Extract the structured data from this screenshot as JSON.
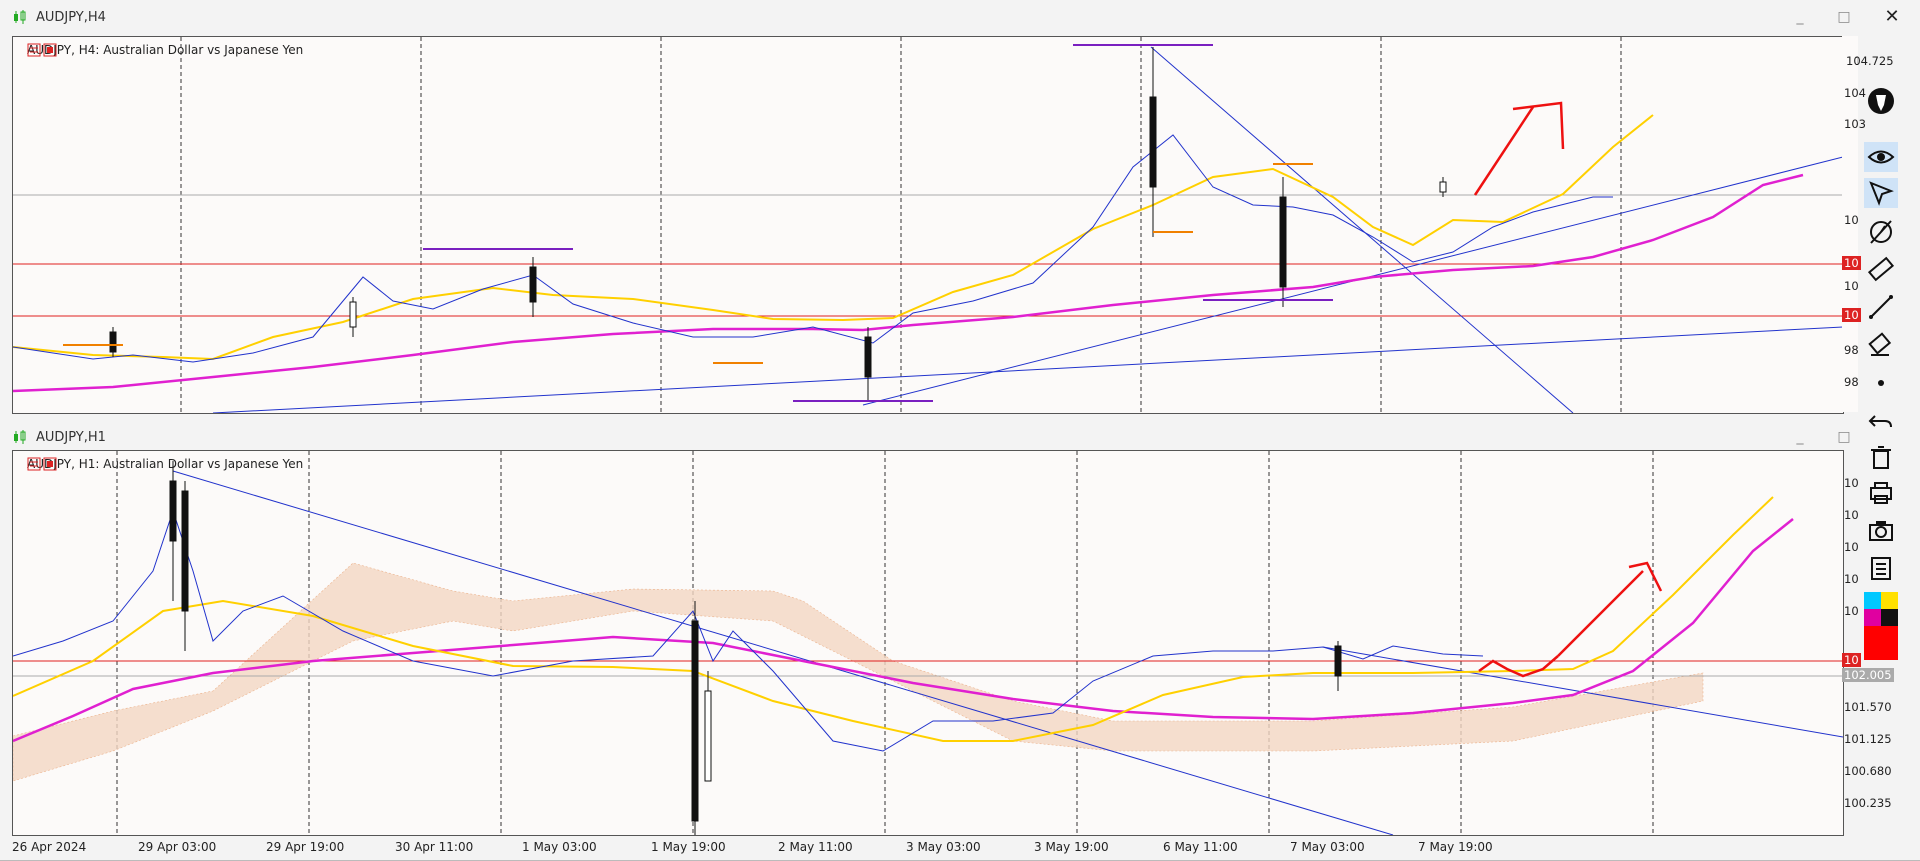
{
  "window_close": "✕",
  "top_window": {
    "title": "AUDJPY,H4",
    "legend": "AUDJPY, H4:  Australian Dollar vs Japanese Yen",
    "minimize": "_",
    "maximize": "□",
    "price_labels": [
      "104.725",
      "104",
      "103",
      "10",
      "10",
      "10",
      "10",
      "98",
      "98"
    ],
    "red_tags": [
      "10",
      "10"
    ]
  },
  "bottom_window": {
    "title": "AUDJPY,H1",
    "legend": "AUDJPY, H1:  Australian Dollar vs Japanese Yen",
    "minimize": "_",
    "maximize": "□",
    "price_labels": [
      "10",
      "10",
      "10",
      "10",
      "10",
      "101.570",
      "101.125",
      "100.680",
      "100.235"
    ],
    "red_tag": "10",
    "current_price": "102.005"
  },
  "time_axis": [
    "26 Apr 2024",
    "29 Apr 03:00",
    "29 Apr 19:00",
    "30 Apr 11:00",
    "1 May 03:00",
    "1 May 19:00",
    "2 May 11:00",
    "3 May 03:00",
    "3 May 19:00",
    "6 May 11:00",
    "7 May 03:00",
    "7 May 19:00"
  ],
  "toolbar": [
    "logo-icon",
    "eye-icon",
    "cursor-icon",
    "timer-icon",
    "ruler-icon",
    "trendline-icon",
    "eraser-icon",
    "dot-icon",
    "undo-icon",
    "trash-icon",
    "print-icon",
    "camera-icon",
    "clipboard-icon",
    "color-palette-icon"
  ],
  "colors": {
    "background": "#fcfaf9",
    "grid": "#333333",
    "fast_ma": "#2233cc",
    "mid_ma": "#ffd000",
    "slow_ma": "#e020d0",
    "trendline": "#2233cc",
    "hline": "#e02020",
    "arrow": "#ee1111",
    "swing_high": "#7a1fc0",
    "swing_low": "#f08000",
    "ichimoku_cloud": "#e8a070"
  }
}
